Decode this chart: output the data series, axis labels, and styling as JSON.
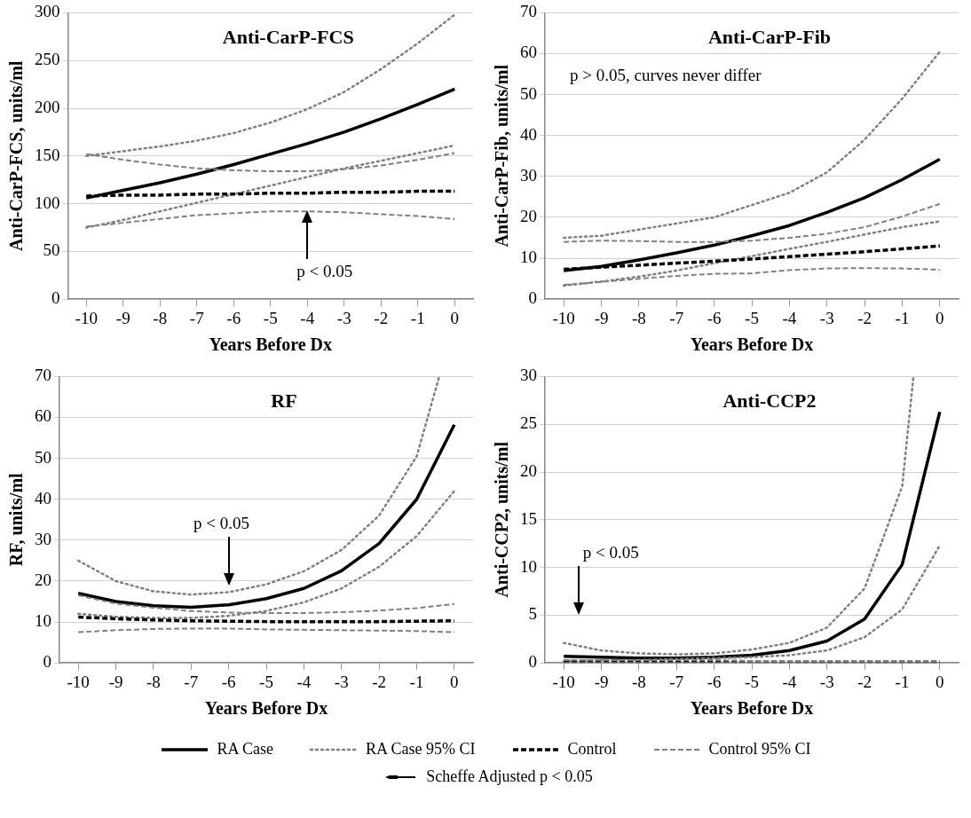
{
  "chart_data": [
    {
      "type": "line",
      "title": "Anti-CarP-FCS",
      "xlabel": "Years Before Dx",
      "ylabel": "Anti-CarP-FCS, units/ml",
      "x": [
        -10,
        -9,
        -8,
        -7,
        -6,
        -5,
        -4,
        -3,
        -2,
        -1,
        0
      ],
      "xlim": [
        -10.5,
        0.5
      ],
      "xticks": [
        -10,
        -9,
        -8,
        -7,
        -6,
        -5,
        -4,
        -3,
        -2,
        -1,
        0
      ],
      "ylim": [
        0,
        300
      ],
      "yticks": [
        0,
        50,
        100,
        150,
        200,
        250,
        300
      ],
      "grid": "y",
      "legend": "bottom",
      "marker": "none",
      "annotations": [
        "p < 0.05",
        "Scheffe Adjusted p < 0.05"
      ],
      "series": [
        {
          "name": "RA Case",
          "color": "#000000",
          "line_style": "solid",
          "values": [
            106,
            114,
            122,
            131,
            141,
            152,
            163,
            175,
            189,
            204,
            220
          ]
        },
        {
          "name": "RA Case 95% CI",
          "color": "#808080",
          "line_style": "dotted",
          "values": [
            150,
            155,
            160,
            166,
            174,
            185,
            199,
            217,
            241,
            268,
            298
          ]
        },
        {
          "color": "#808080",
          "line_style": "dotted",
          "values": [
            75,
            83,
            92,
            101,
            110,
            119,
            128,
            137,
            145,
            153,
            161
          ]
        },
        {
          "name": "Control",
          "color": "#000000",
          "line_style": "dashed",
          "values": [
            108,
            109,
            109,
            110,
            110,
            111,
            111,
            112,
            112,
            113,
            113
          ]
        },
        {
          "name": "Control 95% CI",
          "color": "#808080",
          "line_style": "dashed",
          "values": [
            152,
            146,
            141,
            137,
            135,
            134,
            134,
            136,
            140,
            146,
            153
          ]
        },
        {
          "color": "#808080",
          "line_style": "dashed",
          "values": [
            76,
            80,
            84,
            88,
            90,
            92,
            92,
            91,
            89,
            87,
            84
          ]
        }
      ]
    },
    {
      "type": "line",
      "title": "Anti-CarP-Fib",
      "xlabel": "Years Before Dx",
      "ylabel": "Anti-CarP-Fib, units/ml",
      "x": [
        -10,
        -9,
        -8,
        -7,
        -6,
        -5,
        -4,
        -3,
        -2,
        -1,
        0
      ],
      "xlim": [
        -10.5,
        0.5
      ],
      "xticks": [
        -10,
        -9,
        -8,
        -7,
        -6,
        -5,
        -4,
        -3,
        -2,
        -1,
        0
      ],
      "ylim": [
        0,
        70
      ],
      "yticks": [
        0,
        10,
        20,
        30,
        40,
        50,
        60,
        70
      ],
      "grid": "y",
      "marker": "none",
      "annotations": [
        "p > 0.05, curves never differ"
      ],
      "series": [
        {
          "color": "#000000",
          "line_style": "solid",
          "values": [
            7,
            8,
            9.6,
            11.3,
            13.2,
            15.5,
            18,
            21.2,
            24.8,
            29.2,
            34.2
          ]
        },
        {
          "color": "#808080",
          "line_style": "dotted",
          "values": [
            15,
            15.5,
            17,
            18.5,
            20,
            23,
            26,
            31,
            39,
            49,
            60.5
          ]
        },
        {
          "color": "#808080",
          "line_style": "dotted",
          "values": [
            3.3,
            4.3,
            5.5,
            7,
            8.8,
            10.5,
            12.3,
            14,
            15.8,
            17.6,
            19
          ]
        },
        {
          "color": "#000000",
          "line_style": "dashed",
          "values": [
            7.3,
            7.8,
            8.3,
            8.8,
            9.3,
            9.8,
            10.4,
            11,
            11.6,
            12.3,
            13
          ]
        },
        {
          "color": "#808080",
          "line_style": "dashed",
          "values": [
            14,
            14.3,
            14.2,
            14,
            14,
            14.3,
            15,
            16,
            17.6,
            20.2,
            23.3
          ]
        },
        {
          "color": "#808080",
          "line_style": "dashed",
          "values": [
            3.5,
            4.2,
            5,
            5.7,
            6.2,
            6.3,
            7.1,
            7.5,
            7.6,
            7.5,
            7.2
          ]
        }
      ]
    },
    {
      "type": "line",
      "title": "RF",
      "xlabel": "Years Before Dx",
      "ylabel": "RF, units/ml",
      "x": [
        -10,
        -9,
        -8,
        -7,
        -6,
        -5,
        -4,
        -3,
        -2,
        -1,
        0
      ],
      "xlim": [
        -10.5,
        0.5
      ],
      "xticks": [
        -10,
        -9,
        -8,
        -7,
        -6,
        -5,
        -4,
        -3,
        -2,
        -1,
        0
      ],
      "ylim": [
        0,
        70
      ],
      "yticks": [
        0,
        10,
        20,
        30,
        40,
        50,
        60,
        70
      ],
      "grid": "y",
      "marker": "none",
      "annotations": [
        "p < 0.05"
      ],
      "series": [
        {
          "color": "#000000",
          "line_style": "solid",
          "values": [
            17,
            15,
            14,
            13.6,
            14.2,
            15.7,
            18.2,
            22.5,
            29.2,
            40,
            58.2
          ]
        },
        {
          "color": "#808080",
          "line_style": "dotted",
          "x": [
            -10,
            -9,
            -8,
            -7,
            -6,
            -5,
            -4,
            -3,
            -2,
            -1,
            -0.4
          ],
          "values": [
            25,
            20,
            17.5,
            16.7,
            17.3,
            19.2,
            22.4,
            27.6,
            36,
            50.5,
            70
          ]
        },
        {
          "color": "#808080",
          "line_style": "dotted",
          "values": [
            12,
            11.3,
            11,
            11,
            11.5,
            12.7,
            14.8,
            18.2,
            23.5,
            31,
            42
          ]
        },
        {
          "color": "#000000",
          "line_style": "dashed",
          "values": [
            11.2,
            10.8,
            10.5,
            10.3,
            10.2,
            10.1,
            10.1,
            10.1,
            10.1,
            10.2,
            10.3
          ]
        },
        {
          "color": "#808080",
          "line_style": "dashed",
          "values": [
            16.5,
            14.5,
            13.5,
            12.7,
            12.3,
            12.2,
            12.2,
            12.4,
            12.8,
            13.4,
            14.4
          ]
        },
        {
          "color": "#808080",
          "line_style": "dashed",
          "values": [
            7.5,
            8,
            8.3,
            8.4,
            8.4,
            8.2,
            8.1,
            8,
            7.9,
            7.8,
            7.5
          ]
        }
      ]
    },
    {
      "type": "line",
      "title": "Anti-CCP2",
      "xlabel": "Years Before Dx",
      "ylabel": "Anti-CCP2, units/ml",
      "x": [
        -10,
        -9,
        -8,
        -7,
        -6,
        -5,
        -4,
        -3,
        -2,
        -1,
        0
      ],
      "xlim": [
        -10.5,
        0.5
      ],
      "xticks": [
        -10,
        -9,
        -8,
        -7,
        -6,
        -5,
        -4,
        -3,
        -2,
        -1,
        0
      ],
      "ylim": [
        0,
        30
      ],
      "yticks": [
        0,
        5,
        10,
        15,
        20,
        25,
        30
      ],
      "grid": "y",
      "marker": "none",
      "annotations": [
        "p < 0.05"
      ],
      "series": [
        {
          "color": "#000000",
          "line_style": "solid",
          "values": [
            0.7,
            0.6,
            0.5,
            0.5,
            0.6,
            0.8,
            1.3,
            2.3,
            4.6,
            10.3,
            26.3
          ]
        },
        {
          "color": "#808080",
          "line_style": "dotted",
          "x": [
            -10,
            -9,
            -8,
            -7,
            -6,
            -5,
            -4,
            -3,
            -2,
            -1,
            -0.7
          ],
          "values": [
            2.1,
            1.3,
            1,
            0.9,
            1,
            1.4,
            2.1,
            3.7,
            7.8,
            18.5,
            30
          ]
        },
        {
          "color": "#808080",
          "line_style": "dotted",
          "values": [
            0.2,
            0.3,
            0.3,
            0.4,
            0.5,
            0.6,
            0.8,
            1.3,
            2.7,
            5.6,
            12.3
          ]
        },
        {
          "color": "#000000",
          "line_style": "dashed",
          "values": [
            0.1,
            0.1,
            0.1,
            0.1,
            0.1,
            0.1,
            0.1,
            0.1,
            0.1,
            0.1,
            0.1
          ]
        },
        {
          "color": "#808080",
          "line_style": "dashed",
          "values": [
            0.3,
            0.3,
            0.3,
            0.3,
            0.3,
            0.2,
            0.2,
            0.2,
            0.2,
            0.2,
            0.2
          ]
        },
        {
          "color": "#808080",
          "line_style": "dashed",
          "values": [
            0,
            0,
            0,
            0,
            0,
            0,
            0,
            0,
            0,
            0,
            0
          ]
        }
      ]
    }
  ]
}
